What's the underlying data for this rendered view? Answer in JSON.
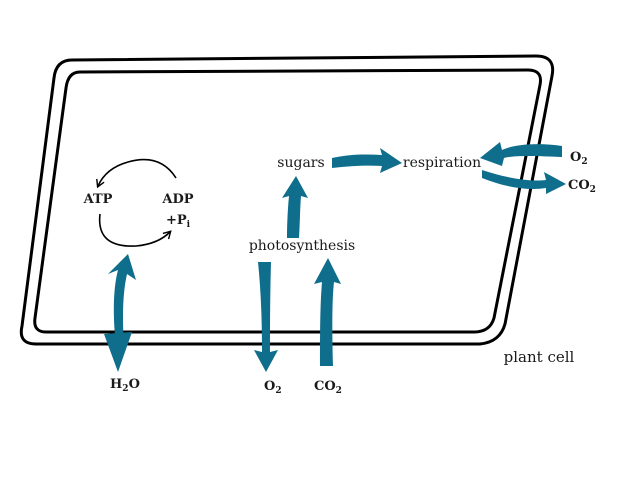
{
  "colors": {
    "arrow": "#0f6e8c",
    "outline": "#000000",
    "text": "#1a1a1a",
    "background": "#ffffff"
  },
  "labels": {
    "atp": "ATP",
    "adp": "ADP",
    "pi_prefix": "+P",
    "pi_sub": "i",
    "sugars": "sugars",
    "respiration": "respiration",
    "photosynthesis": "photosynthesis",
    "plant_cell": "plant cell"
  },
  "molecules": {
    "h2o": {
      "pre": "H",
      "sub": "2",
      "post": "O"
    },
    "o2_bottom": {
      "pre": "O",
      "sub": "2"
    },
    "co2_bottom": {
      "pre": "CO",
      "sub": "2"
    },
    "o2_right": {
      "pre": "O",
      "sub": "2"
    },
    "co2_right": {
      "pre": "CO",
      "sub": "2"
    }
  }
}
